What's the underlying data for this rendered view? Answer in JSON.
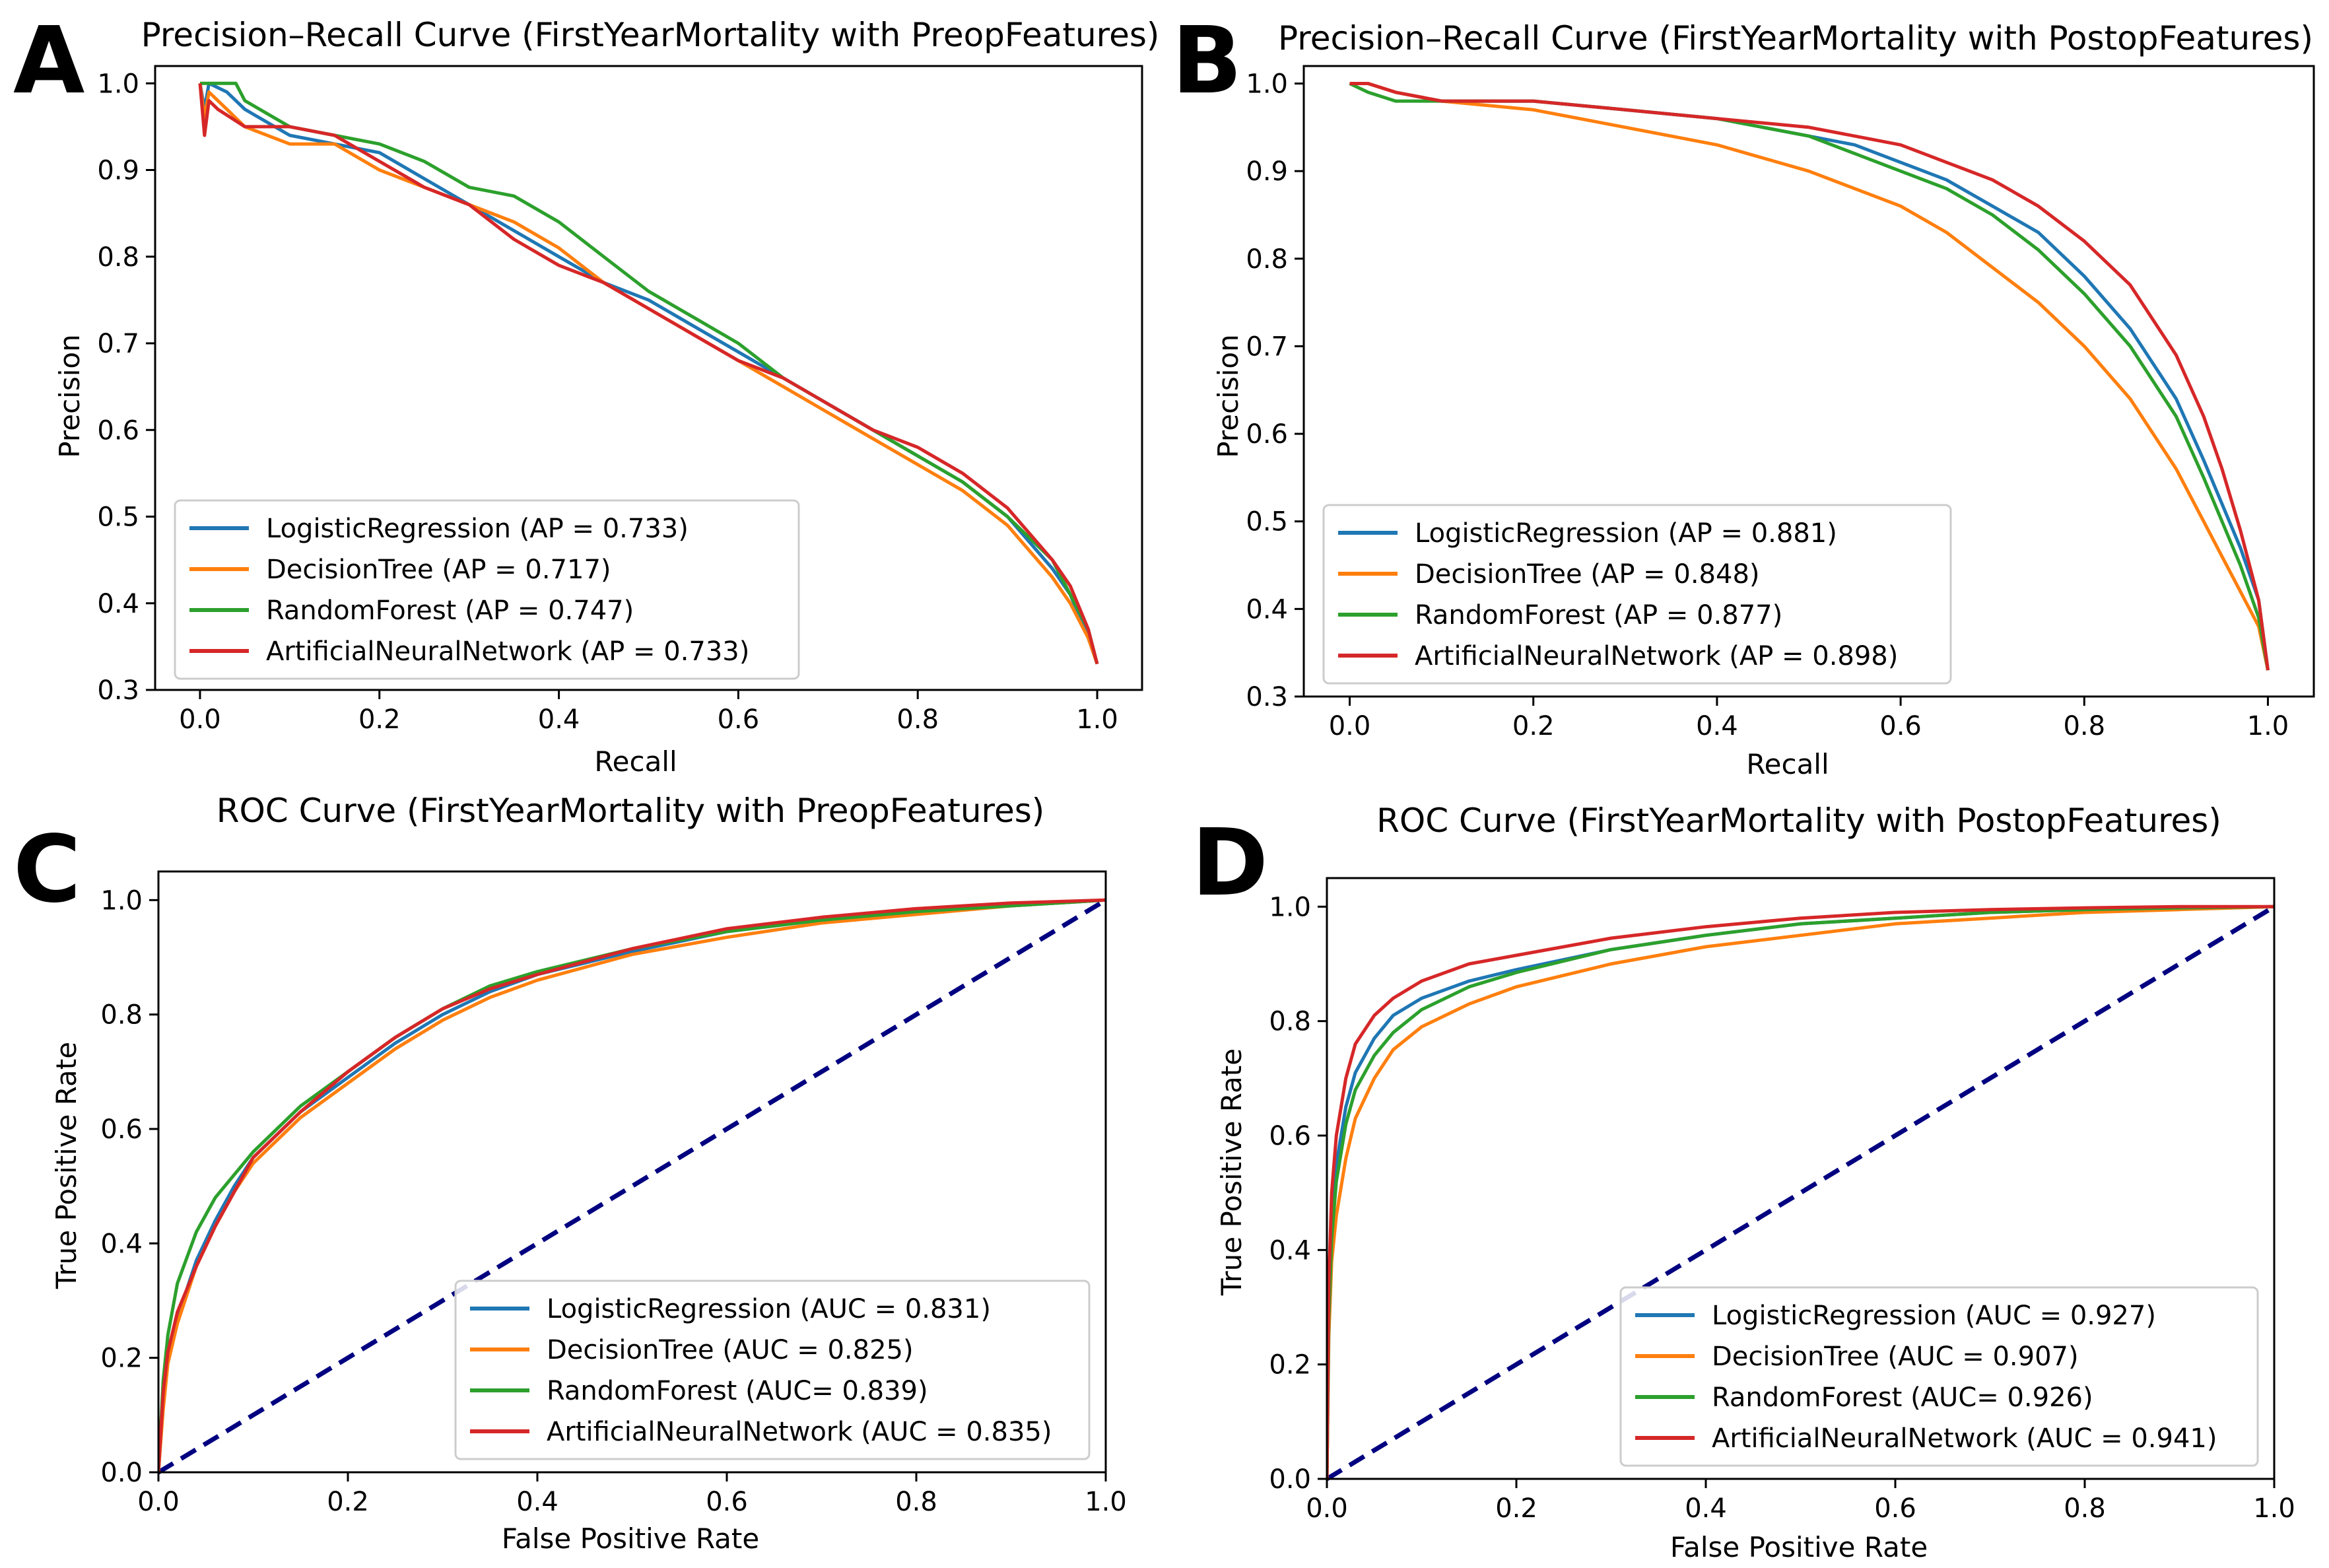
{
  "figure": {
    "panel_letters": [
      "A",
      "B",
      "C",
      "D"
    ]
  },
  "colors": {
    "logistic": "#1f77b4",
    "tree": "#ff7f0e",
    "forest": "#2ca02c",
    "ann": "#d62728",
    "diagonal": "#000080"
  },
  "chart_data": [
    {
      "panel": "A",
      "type": "line",
      "title": "Precision–Recall Curve (FirstYearMortality with PreopFeatures)",
      "xlabel": "Recall",
      "ylabel": "Precision",
      "xlim": [
        -0.05,
        1.05
      ],
      "ylim": [
        0.3,
        1.02
      ],
      "xticks": [
        "0.0",
        "0.2",
        "0.4",
        "0.6",
        "0.8",
        "1.0"
      ],
      "yticks": [
        "0.3",
        "0.4",
        "0.5",
        "0.6",
        "0.7",
        "0.8",
        "0.9",
        "1.0"
      ],
      "legend": "lower-left",
      "grid": false,
      "series": [
        {
          "name": "LogisticRegression (AP = 0.733)",
          "color_key": "logistic",
          "x": [
            0.0,
            0.005,
            0.01,
            0.03,
            0.05,
            0.1,
            0.15,
            0.2,
            0.25,
            0.3,
            0.35,
            0.4,
            0.45,
            0.5,
            0.55,
            0.6,
            0.65,
            0.7,
            0.75,
            0.8,
            0.85,
            0.9,
            0.95,
            0.97,
            0.99,
            1.0
          ],
          "y": [
            1.0,
            0.97,
            1.0,
            0.99,
            0.97,
            0.94,
            0.93,
            0.92,
            0.89,
            0.86,
            0.83,
            0.8,
            0.77,
            0.75,
            0.72,
            0.69,
            0.66,
            0.63,
            0.6,
            0.57,
            0.54,
            0.5,
            0.44,
            0.41,
            0.36,
            0.33
          ]
        },
        {
          "name": "DecisionTree (AP = 0.717)",
          "color_key": "tree",
          "x": [
            0.0,
            0.005,
            0.01,
            0.03,
            0.05,
            0.1,
            0.15,
            0.2,
            0.25,
            0.3,
            0.35,
            0.4,
            0.45,
            0.5,
            0.55,
            0.6,
            0.65,
            0.7,
            0.75,
            0.8,
            0.85,
            0.9,
            0.95,
            0.97,
            0.99,
            1.0
          ],
          "y": [
            1.0,
            0.96,
            0.99,
            0.97,
            0.95,
            0.93,
            0.93,
            0.9,
            0.88,
            0.86,
            0.84,
            0.81,
            0.77,
            0.74,
            0.71,
            0.68,
            0.65,
            0.62,
            0.59,
            0.56,
            0.53,
            0.49,
            0.43,
            0.4,
            0.36,
            0.33
          ]
        },
        {
          "name": "RandomForest (AP = 0.747)",
          "color_key": "forest",
          "x": [
            0.0,
            0.02,
            0.04,
            0.05,
            0.1,
            0.15,
            0.2,
            0.25,
            0.3,
            0.35,
            0.4,
            0.45,
            0.5,
            0.55,
            0.6,
            0.65,
            0.7,
            0.75,
            0.8,
            0.85,
            0.9,
            0.95,
            0.97,
            0.99,
            1.0
          ],
          "y": [
            1.0,
            1.0,
            1.0,
            0.98,
            0.95,
            0.94,
            0.93,
            0.91,
            0.88,
            0.87,
            0.84,
            0.8,
            0.76,
            0.73,
            0.7,
            0.66,
            0.63,
            0.6,
            0.57,
            0.54,
            0.5,
            0.45,
            0.41,
            0.37,
            0.33
          ]
        },
        {
          "name": "ArtificialNeuralNetwork (AP = 0.733)",
          "color_key": "ann",
          "x": [
            0.0,
            0.005,
            0.01,
            0.02,
            0.05,
            0.1,
            0.15,
            0.2,
            0.25,
            0.3,
            0.35,
            0.4,
            0.45,
            0.5,
            0.55,
            0.6,
            0.65,
            0.7,
            0.75,
            0.8,
            0.85,
            0.9,
            0.95,
            0.97,
            0.99,
            1.0
          ],
          "y": [
            1.0,
            0.94,
            0.98,
            0.97,
            0.95,
            0.95,
            0.94,
            0.91,
            0.88,
            0.86,
            0.82,
            0.79,
            0.77,
            0.74,
            0.71,
            0.68,
            0.66,
            0.63,
            0.6,
            0.58,
            0.55,
            0.51,
            0.45,
            0.42,
            0.37,
            0.33
          ]
        }
      ]
    },
    {
      "panel": "B",
      "type": "line",
      "title": "Precision–Recall Curve (FirstYearMortality with PostopFeatures)",
      "xlabel": "Recall",
      "ylabel": "Precision",
      "xlim": [
        -0.05,
        1.05
      ],
      "ylim": [
        0.3,
        1.02
      ],
      "xticks": [
        "0.0",
        "0.2",
        "0.4",
        "0.6",
        "0.8",
        "1.0"
      ],
      "yticks": [
        "0.3",
        "0.4",
        "0.5",
        "0.6",
        "0.7",
        "0.8",
        "0.9",
        "1.0"
      ],
      "legend": "lower-left",
      "grid": false,
      "series": [
        {
          "name": "LogisticRegression (AP = 0.881)",
          "color_key": "logistic",
          "x": [
            0.0,
            0.02,
            0.05,
            0.1,
            0.2,
            0.3,
            0.4,
            0.5,
            0.55,
            0.6,
            0.65,
            0.7,
            0.75,
            0.8,
            0.85,
            0.9,
            0.93,
            0.95,
            0.97,
            0.98,
            0.99,
            1.0
          ],
          "y": [
            1.0,
            1.0,
            0.99,
            0.98,
            0.98,
            0.97,
            0.96,
            0.94,
            0.93,
            0.91,
            0.89,
            0.86,
            0.83,
            0.78,
            0.72,
            0.64,
            0.57,
            0.52,
            0.47,
            0.44,
            0.41,
            0.33
          ]
        },
        {
          "name": "DecisionTree (AP = 0.848)",
          "color_key": "tree",
          "x": [
            0.0,
            0.02,
            0.05,
            0.1,
            0.2,
            0.3,
            0.4,
            0.5,
            0.55,
            0.6,
            0.65,
            0.7,
            0.75,
            0.8,
            0.85,
            0.9,
            0.93,
            0.95,
            0.97,
            0.98,
            0.99,
            1.0
          ],
          "y": [
            1.0,
            1.0,
            0.99,
            0.98,
            0.97,
            0.95,
            0.93,
            0.9,
            0.88,
            0.86,
            0.83,
            0.79,
            0.75,
            0.7,
            0.64,
            0.56,
            0.5,
            0.46,
            0.42,
            0.4,
            0.38,
            0.33
          ]
        },
        {
          "name": "RandomForest (AP = 0.877)",
          "color_key": "forest",
          "x": [
            0.0,
            0.02,
            0.05,
            0.1,
            0.2,
            0.3,
            0.4,
            0.5,
            0.55,
            0.6,
            0.65,
            0.7,
            0.75,
            0.8,
            0.85,
            0.9,
            0.93,
            0.95,
            0.97,
            0.98,
            0.99,
            1.0
          ],
          "y": [
            1.0,
            0.99,
            0.98,
            0.98,
            0.98,
            0.97,
            0.96,
            0.94,
            0.92,
            0.9,
            0.88,
            0.85,
            0.81,
            0.76,
            0.7,
            0.62,
            0.55,
            0.5,
            0.45,
            0.42,
            0.39,
            0.33
          ]
        },
        {
          "name": "ArtificialNeuralNetwork (AP = 0.898)",
          "color_key": "ann",
          "x": [
            0.0,
            0.02,
            0.05,
            0.1,
            0.2,
            0.3,
            0.4,
            0.5,
            0.55,
            0.6,
            0.65,
            0.7,
            0.75,
            0.8,
            0.85,
            0.9,
            0.93,
            0.95,
            0.97,
            0.98,
            0.99,
            1.0
          ],
          "y": [
            1.0,
            1.0,
            0.99,
            0.98,
            0.98,
            0.97,
            0.96,
            0.95,
            0.94,
            0.93,
            0.91,
            0.89,
            0.86,
            0.82,
            0.77,
            0.69,
            0.62,
            0.56,
            0.49,
            0.45,
            0.41,
            0.33
          ]
        }
      ]
    },
    {
      "panel": "C",
      "type": "line",
      "title": "ROC Curve (FirstYearMortality with PreopFeatures)",
      "xlabel": "False Positive Rate",
      "ylabel": "True Positive Rate",
      "xlim": [
        0.0,
        1.0
      ],
      "ylim": [
        0.0,
        1.05
      ],
      "xticks": [
        "0.0",
        "0.2",
        "0.4",
        "0.6",
        "0.8",
        "1.0"
      ],
      "yticks": [
        "0.0",
        "0.2",
        "0.4",
        "0.6",
        "0.8",
        "1.0"
      ],
      "legend": "lower-right",
      "grid": false,
      "diagonal": true,
      "series": [
        {
          "name": "LogisticRegression (AUC = 0.831)",
          "color_key": "logistic",
          "x": [
            0.0,
            0.005,
            0.01,
            0.02,
            0.04,
            0.06,
            0.08,
            0.1,
            0.15,
            0.2,
            0.25,
            0.3,
            0.35,
            0.4,
            0.5,
            0.6,
            0.7,
            0.8,
            0.9,
            1.0
          ],
          "y": [
            0.0,
            0.12,
            0.2,
            0.27,
            0.37,
            0.44,
            0.5,
            0.55,
            0.63,
            0.69,
            0.75,
            0.8,
            0.84,
            0.87,
            0.91,
            0.945,
            0.965,
            0.98,
            0.99,
            1.0
          ]
        },
        {
          "name": "DecisionTree (AUC = 0.825)",
          "color_key": "tree",
          "x": [
            0.0,
            0.005,
            0.01,
            0.02,
            0.04,
            0.06,
            0.08,
            0.1,
            0.15,
            0.2,
            0.25,
            0.3,
            0.35,
            0.4,
            0.5,
            0.6,
            0.7,
            0.8,
            0.9,
            1.0
          ],
          "y": [
            0.0,
            0.11,
            0.19,
            0.26,
            0.36,
            0.43,
            0.49,
            0.54,
            0.62,
            0.68,
            0.74,
            0.79,
            0.83,
            0.86,
            0.905,
            0.935,
            0.96,
            0.975,
            0.99,
            1.0
          ]
        },
        {
          "name": "RandomForest (AUC= 0.839)",
          "color_key": "forest",
          "x": [
            0.0,
            0.005,
            0.01,
            0.02,
            0.04,
            0.06,
            0.08,
            0.1,
            0.15,
            0.2,
            0.25,
            0.3,
            0.35,
            0.4,
            0.5,
            0.6,
            0.7,
            0.8,
            0.9,
            1.0
          ],
          "y": [
            0.0,
            0.16,
            0.24,
            0.33,
            0.42,
            0.48,
            0.52,
            0.56,
            0.64,
            0.7,
            0.76,
            0.81,
            0.85,
            0.875,
            0.915,
            0.945,
            0.965,
            0.98,
            0.99,
            1.0
          ]
        },
        {
          "name": "ArtificialNeuralNetwork (AUC = 0.835)",
          "color_key": "ann",
          "x": [
            0.0,
            0.005,
            0.01,
            0.02,
            0.04,
            0.06,
            0.08,
            0.1,
            0.15,
            0.2,
            0.25,
            0.3,
            0.35,
            0.4,
            0.5,
            0.6,
            0.7,
            0.8,
            0.9,
            1.0
          ],
          "y": [
            0.0,
            0.14,
            0.21,
            0.28,
            0.36,
            0.43,
            0.49,
            0.55,
            0.63,
            0.7,
            0.76,
            0.81,
            0.845,
            0.87,
            0.915,
            0.95,
            0.97,
            0.985,
            0.995,
            1.0
          ]
        }
      ]
    },
    {
      "panel": "D",
      "type": "line",
      "title": "ROC Curve (FirstYearMortality with PostopFeatures)",
      "xlabel": "False Positive Rate",
      "ylabel": "True Positive Rate",
      "xlim": [
        0.0,
        1.0
      ],
      "ylim": [
        0.0,
        1.05
      ],
      "xticks": [
        "0.0",
        "0.2",
        "0.4",
        "0.6",
        "0.8",
        "1.0"
      ],
      "yticks": [
        "0.0",
        "0.2",
        "0.4",
        "0.6",
        "0.8",
        "1.0"
      ],
      "legend": "lower-right",
      "grid": false,
      "diagonal": true,
      "series": [
        {
          "name": "LogisticRegression (AUC = 0.927)",
          "color_key": "logistic",
          "x": [
            0.0,
            0.002,
            0.005,
            0.01,
            0.02,
            0.03,
            0.05,
            0.07,
            0.1,
            0.15,
            0.2,
            0.3,
            0.4,
            0.5,
            0.6,
            0.7,
            0.8,
            0.9,
            1.0
          ],
          "y": [
            0.0,
            0.3,
            0.45,
            0.55,
            0.65,
            0.71,
            0.77,
            0.81,
            0.84,
            0.87,
            0.89,
            0.925,
            0.95,
            0.97,
            0.98,
            0.99,
            0.995,
            0.998,
            1.0
          ]
        },
        {
          "name": "DecisionTree (AUC = 0.907)",
          "color_key": "tree",
          "x": [
            0.0,
            0.002,
            0.005,
            0.01,
            0.02,
            0.03,
            0.05,
            0.07,
            0.1,
            0.15,
            0.2,
            0.3,
            0.4,
            0.5,
            0.6,
            0.7,
            0.8,
            0.9,
            1.0
          ],
          "y": [
            0.0,
            0.25,
            0.38,
            0.46,
            0.56,
            0.63,
            0.7,
            0.75,
            0.79,
            0.83,
            0.86,
            0.9,
            0.93,
            0.95,
            0.97,
            0.98,
            0.99,
            0.995,
            1.0
          ]
        },
        {
          "name": "RandomForest (AUC= 0.926)",
          "color_key": "forest",
          "x": [
            0.0,
            0.002,
            0.005,
            0.01,
            0.02,
            0.03,
            0.05,
            0.07,
            0.1,
            0.15,
            0.2,
            0.3,
            0.4,
            0.5,
            0.6,
            0.7,
            0.8,
            0.9,
            1.0
          ],
          "y": [
            0.0,
            0.28,
            0.42,
            0.52,
            0.62,
            0.68,
            0.74,
            0.78,
            0.82,
            0.86,
            0.885,
            0.925,
            0.95,
            0.97,
            0.98,
            0.99,
            0.995,
            0.998,
            1.0
          ]
        },
        {
          "name": "ArtificialNeuralNetwork (AUC = 0.941)",
          "color_key": "ann",
          "x": [
            0.0,
            0.002,
            0.005,
            0.01,
            0.02,
            0.03,
            0.05,
            0.07,
            0.1,
            0.15,
            0.2,
            0.3,
            0.4,
            0.5,
            0.6,
            0.7,
            0.8,
            0.9,
            1.0
          ],
          "y": [
            0.0,
            0.34,
            0.5,
            0.6,
            0.7,
            0.76,
            0.81,
            0.84,
            0.87,
            0.9,
            0.915,
            0.945,
            0.965,
            0.98,
            0.99,
            0.995,
            0.998,
            1.0,
            1.0
          ]
        }
      ]
    }
  ]
}
